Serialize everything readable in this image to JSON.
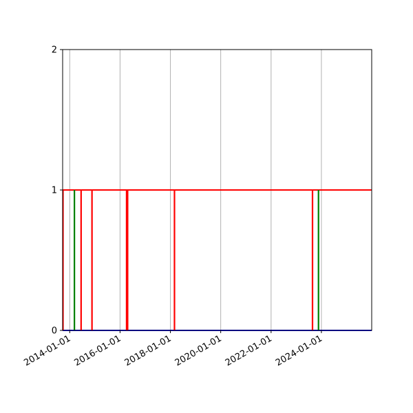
{
  "chart_data": {
    "type": "line",
    "title": "",
    "xlabel": "",
    "ylabel": "",
    "x_axis": "date",
    "xlim": [
      "2013-09-20",
      "2025-12-31"
    ],
    "ylim": [
      0,
      2
    ],
    "xticks": [
      "2014-01-01",
      "2016-01-01",
      "2018-01-01",
      "2020-01-01",
      "2022-01-01",
      "2024-01-01"
    ],
    "yticks": [
      0,
      1,
      2
    ],
    "grid": {
      "x": true,
      "y": false
    },
    "colors": {
      "red": "#ff0000",
      "green": "#008000",
      "blue": "#0000ff",
      "grid": "#b0b0b0"
    },
    "series": [
      {
        "color": "#ff0000",
        "values": [
          1,
          1
        ],
        "x": [
          "2013-09-20",
          "2025-12-31"
        ]
      },
      {
        "color": "#0000ff",
        "values": [
          0,
          0
        ],
        "x": [
          "2013-09-20",
          "2025-12-31"
        ]
      }
    ],
    "vlines": [
      {
        "x": "2013-09-25",
        "y0": 0,
        "y1": 1,
        "color": "#ff0000"
      },
      {
        "x": "2014-03-10",
        "y0": 0,
        "y1": 1,
        "color": "#008000"
      },
      {
        "x": "2014-06-15",
        "y0": 0,
        "y1": 1,
        "color": "#ff0000"
      },
      {
        "x": "2014-11-20",
        "y0": 0,
        "y1": 1,
        "color": "#ff0000"
      },
      {
        "x": "2016-04-05",
        "y0": 0,
        "y1": 1,
        "color": "#ff0000"
      },
      {
        "x": "2016-04-20",
        "y0": 0,
        "y1": 1,
        "color": "#ff0000"
      },
      {
        "x": "2018-03-01",
        "y0": 0,
        "y1": 1,
        "color": "#ff0000"
      },
      {
        "x": "2023-08-25",
        "y0": 0,
        "y1": 1,
        "color": "#ff0000"
      },
      {
        "x": "2023-11-20",
        "y0": 0,
        "y1": 1,
        "color": "#008000"
      }
    ]
  }
}
